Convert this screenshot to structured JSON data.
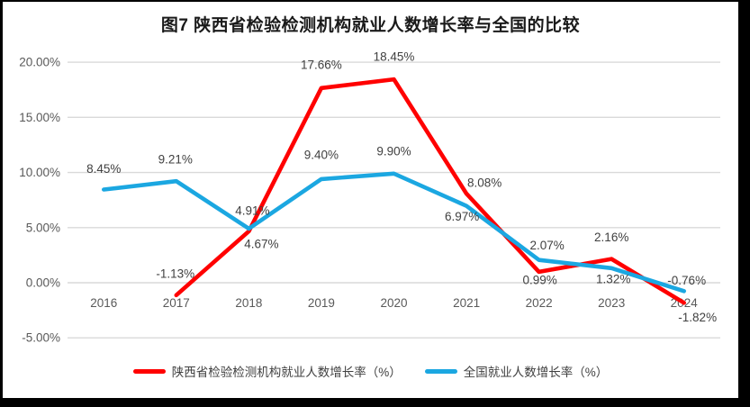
{
  "frame": {
    "border_color": "#000000",
    "background": "#ffffff"
  },
  "chart_data": {
    "type": "line",
    "title": "图7 陕西省检验检测机构就业人数增长率与全国的比较",
    "categories": [
      "2016",
      "2017",
      "2018",
      "2019",
      "2020",
      "2021",
      "2022",
      "2023",
      "2024"
    ],
    "series": [
      {
        "name": "陕西省检验检测机构就业人数增长率（%）",
        "color": "#ff0000",
        "values": [
          null,
          -1.13,
          4.67,
          17.66,
          18.45,
          8.08,
          0.99,
          2.16,
          -1.82
        ]
      },
      {
        "name": "全国就业人数增长率（%）",
        "color": "#1ba7e1",
        "values": [
          8.45,
          9.21,
          4.91,
          9.4,
          9.9,
          6.97,
          2.07,
          1.32,
          -0.76
        ]
      }
    ],
    "ytick_labels": [
      "20.00%",
      "15.00%",
      "10.00%",
      "5.00%",
      "0.00%",
      "-5.00%"
    ],
    "ytick_values": [
      20,
      15,
      10,
      5,
      0,
      -5
    ],
    "ylim": [
      -5,
      20
    ],
    "grid": true,
    "grid_color": "#d9d9d9",
    "axis_text_color": "#595959",
    "data_label_color": "#404040",
    "legend_position": "bottom"
  }
}
